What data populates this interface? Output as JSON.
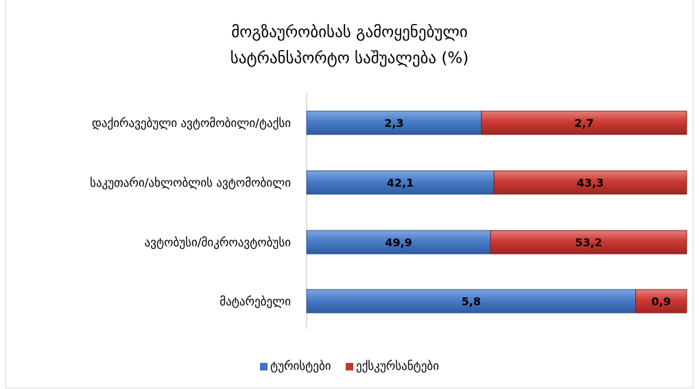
{
  "chart_data": {
    "type": "bar",
    "orientation": "horizontal",
    "stacked": "percent",
    "title_lines": [
      "მოგზაურობისას გამოყენებული",
      "სატრანსპორტო საშუალება (%)"
    ],
    "categories": [
      "დაქირავებული ავტომობილი/ტაქსი",
      "საკუთარი/ახლობლის ავტომობილი",
      "ავტობუსი/მიკროავტობუსი",
      "მატარებელი"
    ],
    "value_labels": [
      [
        "2,3",
        "42,1",
        "49,9",
        "5,8"
      ],
      [
        "2,7",
        "43,3",
        "53,2",
        "0,9"
      ]
    ],
    "series": [
      {
        "name": "ტურისტები",
        "color": "#4472C4",
        "values": [
          2.3,
          42.1,
          49.9,
          5.8
        ]
      },
      {
        "name": "ექსკურსანტები",
        "color": "#C0392B",
        "values": [
          2.7,
          43.3,
          53.2,
          0.9
        ]
      }
    ],
    "legend_position": "bottom",
    "grid": false
  }
}
